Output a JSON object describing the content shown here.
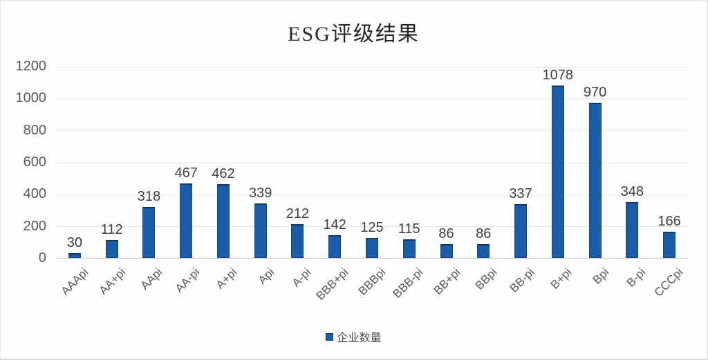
{
  "chart_data": {
    "type": "bar",
    "title": "ESG评级结果",
    "categories": [
      "AAApi",
      "AA+pi",
      "AApi",
      "AA-pi",
      "A+pi",
      "Api",
      "A-pi",
      "BBB+pi",
      "BBBpi",
      "BBB-pi",
      "BB+pi",
      "BBpi",
      "BB-pi",
      "B+pi",
      "Bpi",
      "B-pi",
      "CCCpi"
    ],
    "values": [
      30,
      112,
      318,
      467,
      462,
      339,
      212,
      142,
      125,
      115,
      86,
      86,
      337,
      1078,
      970,
      348,
      166
    ],
    "series_name": "企业数量",
    "xlabel": "",
    "ylabel": "",
    "ylim": [
      0,
      1200
    ],
    "yticks": [
      0,
      200,
      400,
      600,
      800,
      1000,
      1200
    ],
    "grid": true,
    "legend_position": "bottom",
    "data_labels": true,
    "colors": {
      "bar": "#1a5ca8",
      "bar_border": "#134a82",
      "grid": "#e4e4e4",
      "axis_line": "#c9c9c9",
      "tick_text": "#595959",
      "value_text": "#3f3f3f",
      "title_text": "#262626"
    }
  },
  "legend": {
    "label": "企业数量"
  }
}
